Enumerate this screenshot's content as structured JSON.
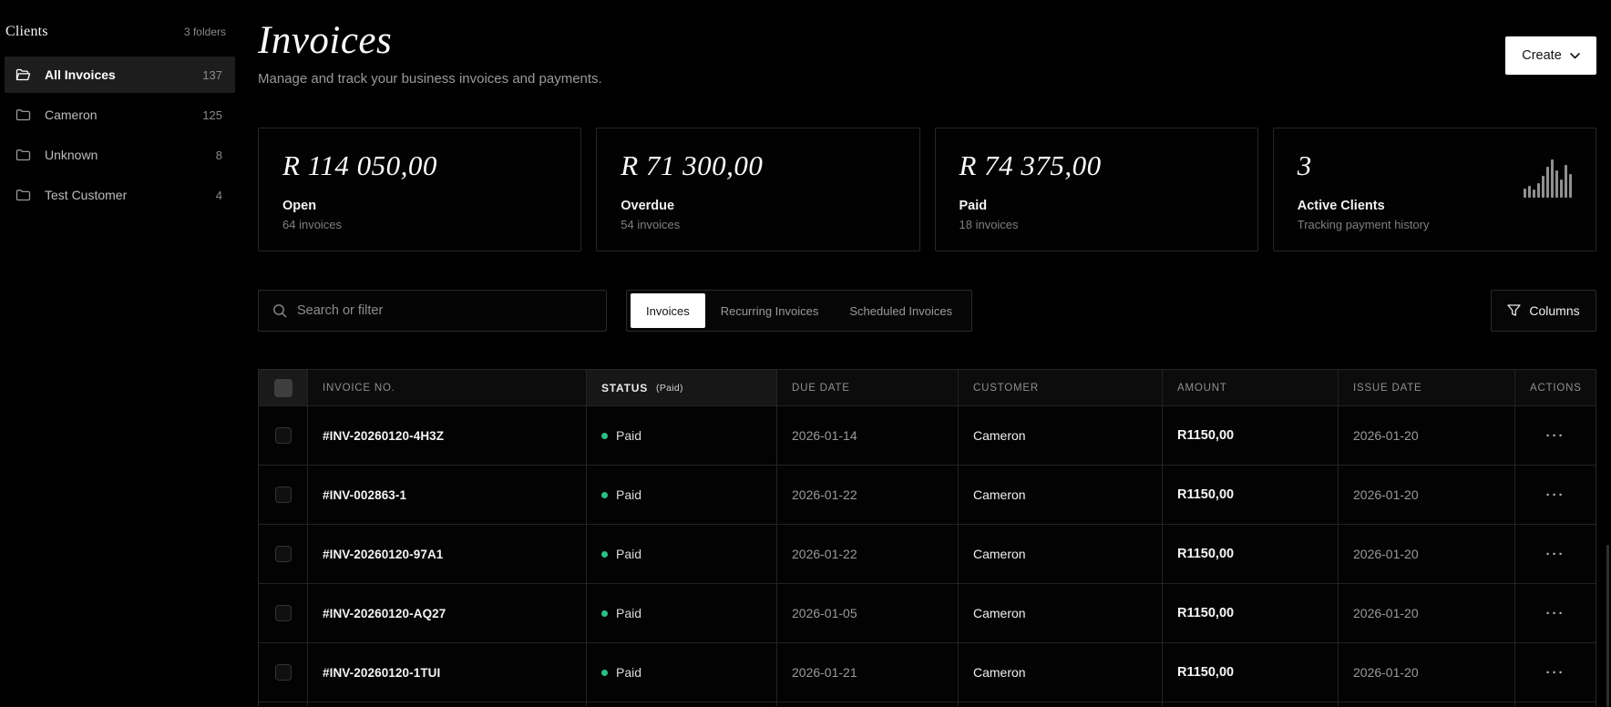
{
  "sidebar": {
    "title": "Clients",
    "folders_label": "3 folders",
    "items": [
      {
        "id": "all-invoices",
        "label": "All Invoices",
        "count": "137",
        "active": true
      },
      {
        "id": "cameron",
        "label": "Cameron",
        "count": "125",
        "active": false
      },
      {
        "id": "unknown",
        "label": "Unknown",
        "count": "8",
        "active": false
      },
      {
        "id": "test-customer",
        "label": "Test Customer",
        "count": "4",
        "active": false
      }
    ]
  },
  "header": {
    "title": "Invoices",
    "subtitle": "Manage and track your business invoices and payments.",
    "create_label": "Create"
  },
  "stats": [
    {
      "value": "R 114 050,00",
      "label": "Open",
      "sub": "64 invoices"
    },
    {
      "value": "R 71 300,00",
      "label": "Overdue",
      "sub": "54 invoices"
    },
    {
      "value": "R 74 375,00",
      "label": "Paid",
      "sub": "18 invoices"
    },
    {
      "value": "3",
      "label": "Active Clients",
      "sub": "Tracking payment history",
      "icon": "bar-chart-icon",
      "icon_bars": [
        10,
        13,
        9,
        16,
        24,
        34,
        42,
        30,
        20,
        36,
        26
      ]
    }
  ],
  "toolbar": {
    "search_placeholder": "Search or filter",
    "tabs": [
      {
        "id": "invoices",
        "label": "Invoices",
        "active": true
      },
      {
        "id": "recurring-invoices",
        "label": "Recurring Invoices",
        "active": false
      },
      {
        "id": "scheduled-invoices",
        "label": "Scheduled Invoices",
        "active": false
      }
    ],
    "columns_label": "Columns"
  },
  "table": {
    "columns": [
      {
        "id": "invoice-no",
        "label": "INVOICE NO."
      },
      {
        "id": "status",
        "label": "STATUS",
        "badge": "(Paid)",
        "highlight": true
      },
      {
        "id": "due-date",
        "label": "DUE DATE"
      },
      {
        "id": "customer",
        "label": "CUSTOMER"
      },
      {
        "id": "amount",
        "label": "AMOUNT"
      },
      {
        "id": "issue-date",
        "label": "ISSUE DATE"
      },
      {
        "id": "actions",
        "label": "ACTIONS"
      }
    ],
    "actions_glyph": "···",
    "rows": [
      {
        "invoice_no": "#INV-20260120-4H3Z",
        "status": "Paid",
        "due_date": "2026-01-14",
        "customer": "Cameron",
        "amount": "R1150,00",
        "issue_date": "2026-01-20"
      },
      {
        "invoice_no": "#INV-002863-1",
        "status": "Paid",
        "due_date": "2026-01-22",
        "customer": "Cameron",
        "amount": "R1150,00",
        "issue_date": "2026-01-20"
      },
      {
        "invoice_no": "#INV-20260120-97A1",
        "status": "Paid",
        "due_date": "2026-01-22",
        "customer": "Cameron",
        "amount": "R1150,00",
        "issue_date": "2026-01-20"
      },
      {
        "invoice_no": "#INV-20260120-AQ27",
        "status": "Paid",
        "due_date": "2026-01-05",
        "customer": "Cameron",
        "amount": "R1150,00",
        "issue_date": "2026-01-20"
      },
      {
        "invoice_no": "#INV-20260120-1TUI",
        "status": "Paid",
        "due_date": "2026-01-21",
        "customer": "Cameron",
        "amount": "R1150,00",
        "issue_date": "2026-01-20"
      }
    ]
  },
  "colors": {
    "paid_dot": "#2ebd85",
    "active_tab_bg": "#ffffff",
    "create_button_bg": "#ffffff"
  }
}
